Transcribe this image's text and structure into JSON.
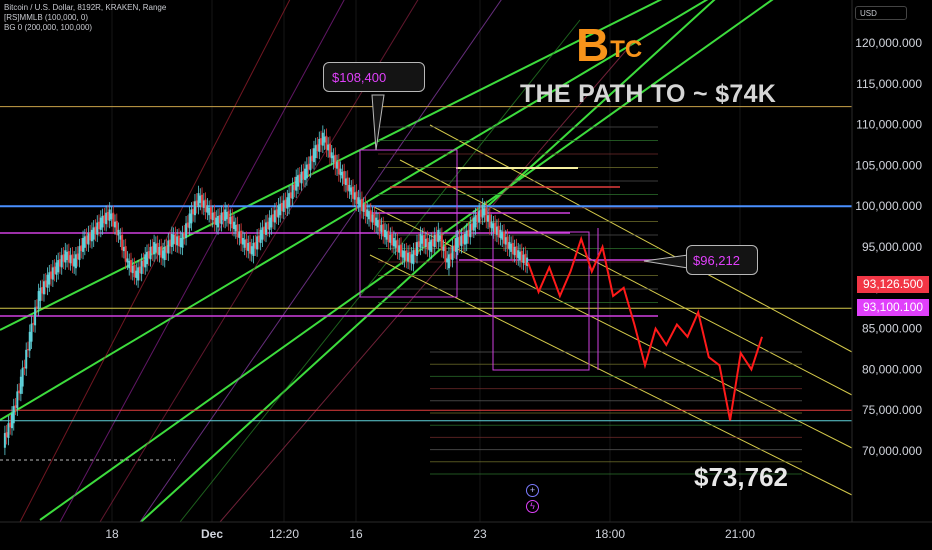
{
  "legend": {
    "line1": "Bitcoin / U.S. Dollar, 8192R, KRAKEN, Range",
    "line2": "[RS]MMLB (100,000, 0)",
    "line3": "BG 0 (200,000, 100,000)"
  },
  "currency_button": "USD",
  "logo": {
    "b": "B",
    "tc": "TC"
  },
  "headline": "THE PATH TO ~ $74K",
  "callouts": {
    "high": "$108,400",
    "mid": "$96,212"
  },
  "target_label": "$73,762",
  "price_tags": {
    "last": {
      "text": "93,126.500",
      "color": "#f23645"
    },
    "second": {
      "text": "93,100.100",
      "color": "#e040fb"
    }
  },
  "icons": {
    "plus": "plus-circle-icon",
    "bolt": "lightning-icon"
  },
  "colors": {
    "background": "#000000",
    "channel_green": "#3ddc3d",
    "forecast_red": "#ff1a1a",
    "blue_line": "#4a90ff",
    "magenta": "#d040e0",
    "yellow_channel": "#d4c94a",
    "cyan_line": "#5fd1d9",
    "candle_up": "#5fd1d9",
    "candle_down": "#e23d3d"
  },
  "chart_data": {
    "type": "line",
    "title": "THE PATH TO ~ $74K",
    "y_axis": {
      "ticks": [
        70000,
        75000,
        80000,
        85000,
        90000,
        95000,
        100000,
        105000,
        110000,
        115000,
        120000
      ],
      "tick_labels": [
        "70,000.000",
        "75,000.000",
        "80,000.000",
        "85,000.000",
        "90,000.000",
        "95,000.000",
        "100,000.000",
        "105,000.000",
        "110,000.000",
        "115,000.000",
        "120,000.000"
      ],
      "range": [
        66500,
        125000
      ],
      "unit": "USD"
    },
    "x_axis": {
      "tick_labels": [
        "18",
        "Dec",
        "12:20",
        "16",
        "23",
        "18:00",
        "21:00"
      ]
    },
    "horizontal_levels": [
      {
        "price": 112200,
        "color": "#c9a24a"
      },
      {
        "price": 100000,
        "color": "#4a90ff"
      },
      {
        "price": 87500,
        "color": "#d4c94a"
      },
      {
        "price": 75000,
        "color": "#e23d3d"
      },
      {
        "price": 73700,
        "color": "#5fd1d9"
      }
    ],
    "annotations": [
      {
        "text": "$108,400",
        "price": 108400
      },
      {
        "text": "$96,212",
        "price": 96212
      },
      {
        "text": "$73,762",
        "price": 73762
      }
    ],
    "series": [
      {
        "role": "price",
        "values": [
          71000,
          74000,
          78500,
          84000,
          89000,
          91000,
          92500,
          94000,
          93000,
          95500,
          96500,
          98000,
          99000,
          96500,
          93000,
          91500,
          93500,
          95000,
          94000,
          96000,
          95500,
          98500,
          101000,
          99500,
          98000,
          99000,
          97500,
          95500,
          94500,
          96500,
          98000,
          99500,
          100500,
          103000,
          104000,
          106500,
          108400,
          106000,
          104000,
          102000,
          100500,
          99000,
          98000,
          96500,
          95500,
          94000,
          93500,
          96000,
          95000,
          96500,
          93000,
          95500,
          96000,
          98000,
          99500,
          97500,
          96500,
          95000,
          94000,
          93100
        ]
      },
      {
        "role": "forecast",
        "values": [
          93100,
          89500,
          92500,
          89000,
          92000,
          96000,
          92000,
          95000,
          89000,
          90000,
          85500,
          80500,
          85000,
          83000,
          85500,
          84000,
          87000,
          81500,
          80500,
          73762,
          82000,
          80000,
          84000
        ]
      }
    ]
  }
}
